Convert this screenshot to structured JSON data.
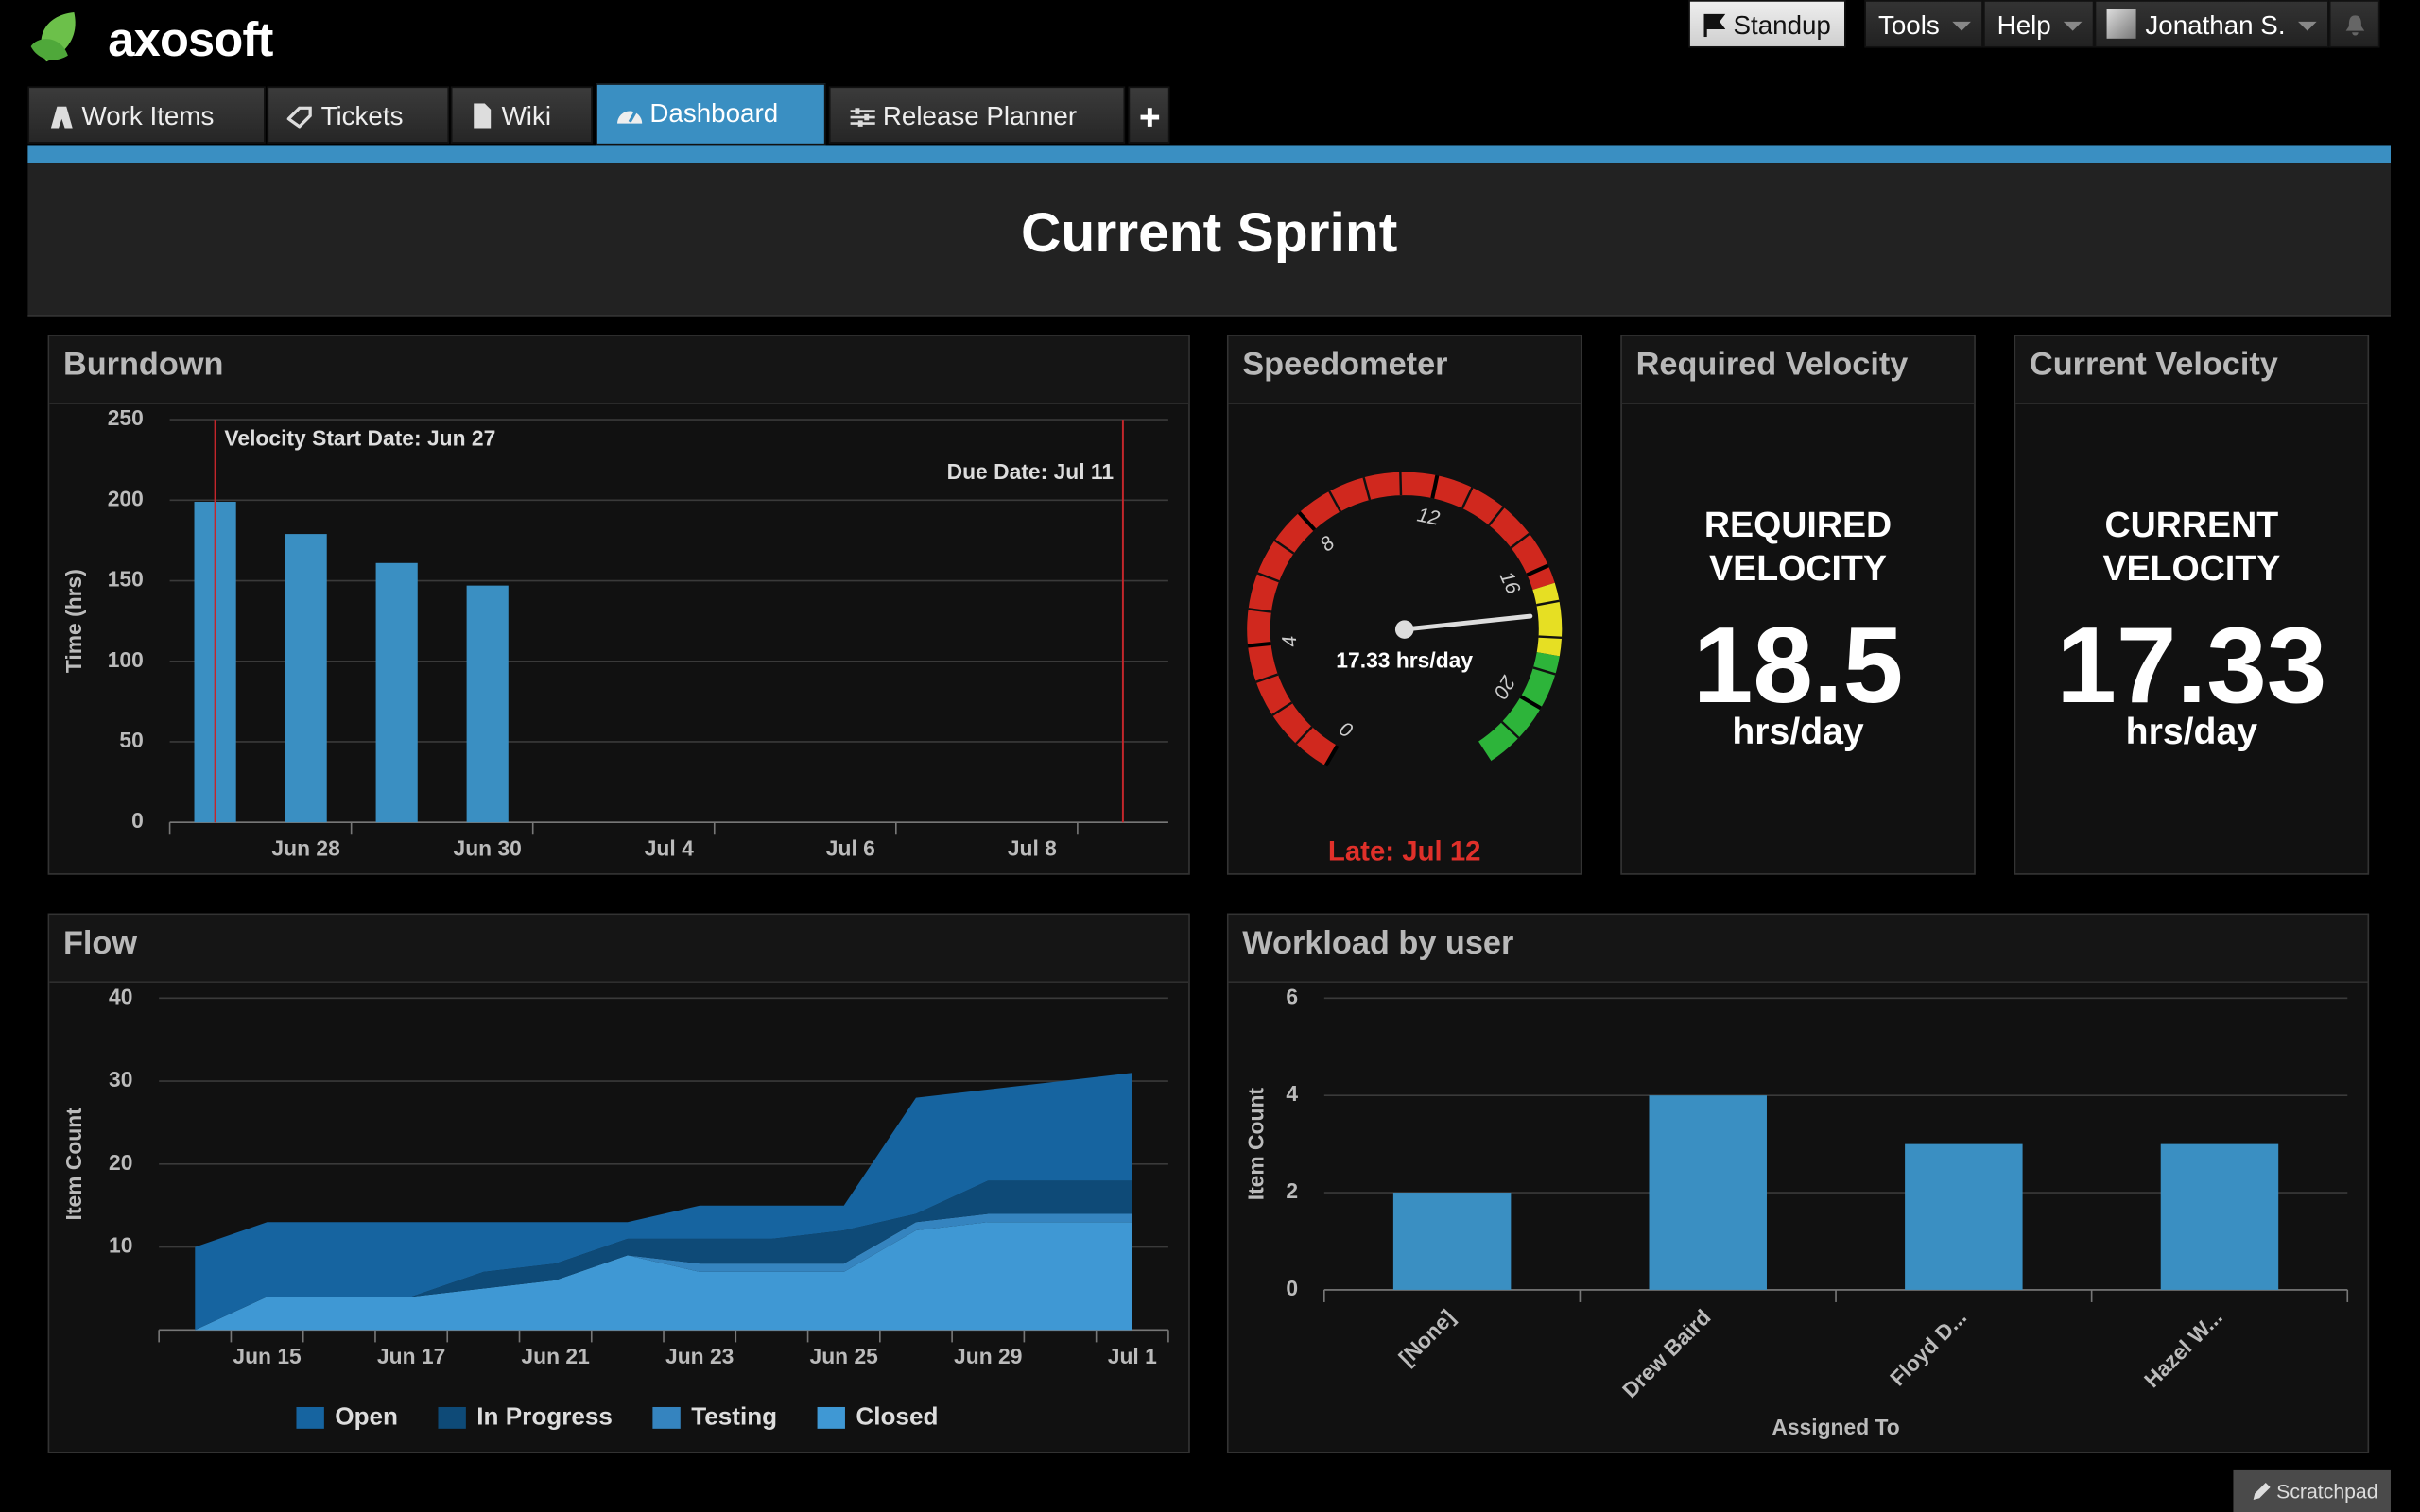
{
  "header": {
    "logo": "axosoft",
    "buttons": [
      "Standup",
      "Tools",
      "Help",
      "Jonathan S."
    ]
  },
  "tabs": [
    "Work Items",
    "Tickets",
    "Wiki",
    "Dashboard",
    "Release Planner"
  ],
  "page_title": "Current Sprint",
  "velocity": [
    {
      "title": "Required Velocity",
      "label": "REQUIRED VELOCITY",
      "value": 18.5,
      "unit": "hrs/day"
    },
    {
      "title": "Current Velocity",
      "label": "CURRENT VELOCITY",
      "value": 17.33,
      "unit": "hrs/day"
    }
  ],
  "scratchpad": "Scratchpad",
  "chart_data": [
    {
      "type": "bar",
      "title": "Burndown",
      "categories": [
        null,
        "Jun 28",
        null,
        "Jun 30",
        null,
        "Jul 4",
        null,
        "Jul 6",
        null,
        "Jul 8",
        null
      ],
      "values": [
        199,
        179,
        161,
        147,
        null,
        null,
        null,
        null,
        null,
        null,
        null
      ],
      "color": "#3a8fc2",
      "ylim": [
        0,
        250
      ],
      "yticks": [
        0,
        50,
        100,
        150,
        200,
        250
      ],
      "ylabel": "Time (hrs)",
      "grid": true,
      "annotations": [
        {
          "text": "Velocity Start Date: Jun 27",
          "color": "#c4262b"
        },
        {
          "text": "Due Date: Jul 11",
          "color": "#c4262b"
        }
      ]
    },
    {
      "type": "gauge",
      "title": "Speedometer",
      "values": [
        17.33
      ],
      "value_labels": [
        "17.33 hrs/day"
      ],
      "ylim": [
        0,
        22
      ],
      "yticks": [
        0,
        4,
        8,
        12,
        16,
        20
      ],
      "bands": [
        {
          "from": 0,
          "to": 16.5,
          "color": "#d0281e"
        },
        {
          "from": 16.5,
          "to": 18.5,
          "color": "#e6df23"
        },
        {
          "from": 18.5,
          "to": 22,
          "color": "#2db43a"
        }
      ],
      "note": "Late: Jul 12",
      "note_color": "#e0302a"
    },
    {
      "type": "area",
      "stacked": true,
      "title": "Flow",
      "categories": [
        null,
        "Jun 15",
        null,
        "Jun 17",
        null,
        "Jun 21",
        null,
        "Jun 23",
        null,
        "Jun 25",
        null,
        "Jun 29",
        null,
        "Jul 1"
      ],
      "series": [
        {
          "name": "Open",
          "color": "#1664a0",
          "values": [
            10,
            9,
            9,
            9,
            6,
            5,
            2,
            4,
            4,
            3,
            14,
            11,
            12,
            13
          ]
        },
        {
          "name": "In Progress",
          "color": "#0e4a77",
          "values": [
            0,
            0,
            0,
            0,
            2,
            2,
            2,
            3,
            3,
            4,
            1,
            4,
            4,
            4
          ]
        },
        {
          "name": "Testing",
          "color": "#3584bf",
          "values": [
            0,
            0,
            0,
            0,
            0,
            0,
            0,
            1,
            1,
            1,
            1,
            1,
            1,
            1
          ]
        },
        {
          "name": "Closed",
          "color": "#3f98d4",
          "values": [
            0,
            4,
            4,
            4,
            5,
            6,
            9,
            7,
            7,
            7,
            12,
            13,
            13,
            13
          ]
        }
      ],
      "ylim": [
        0,
        40
      ],
      "yticks": [
        10,
        20,
        30,
        40
      ],
      "ylabel": "Item Count",
      "grid": true,
      "legend": "bottom"
    },
    {
      "type": "bar",
      "title": "Workload by user",
      "categories": [
        "[None]",
        "Drew Baird",
        "Floyd D...",
        "Hazel W..."
      ],
      "values": [
        2,
        4,
        3,
        3
      ],
      "color": "#3a8fc2",
      "ylim": [
        0,
        6
      ],
      "yticks": [
        0,
        2,
        4,
        6
      ],
      "ylabel": "Item Count",
      "xlabel": "Assigned To",
      "grid": true
    }
  ]
}
